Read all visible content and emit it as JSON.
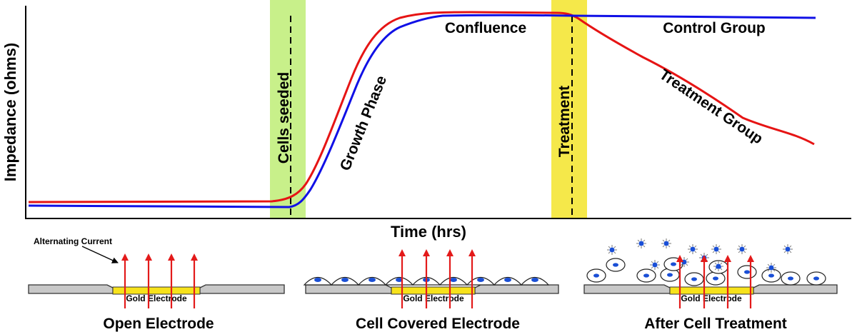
{
  "axes": {
    "ylabel": "Impedance (ohms)",
    "xlabel": "Time (hrs)"
  },
  "annotations": {
    "cells_seeded": "Cells seeded",
    "growth_phase": "Growth Phase",
    "confluence": "Confluence",
    "treatment": "Treatment",
    "control_group": "Control Group",
    "treatment_group": "Treatment Group"
  },
  "colors": {
    "control_line": "#1010e6",
    "treatment_line": "#e61414",
    "seed_band": "#c8f08a",
    "treatment_band": "#f5e84a",
    "electrode": "#f7e21b",
    "substrate": "#c8c8c8",
    "current_arrow": "#e31a1a",
    "nucleus": "#1a4fd6"
  },
  "panels": {
    "alt_current": "Alternating Current",
    "open": {
      "title": "Open Electrode",
      "electrode_label": "Gold Electrode"
    },
    "covered": {
      "title": "Cell Covered Electrode",
      "electrode_label": "Gold Electrode"
    },
    "treated": {
      "title": "After Cell Treatment",
      "electrode_label": "Gold Electrode"
    }
  }
}
